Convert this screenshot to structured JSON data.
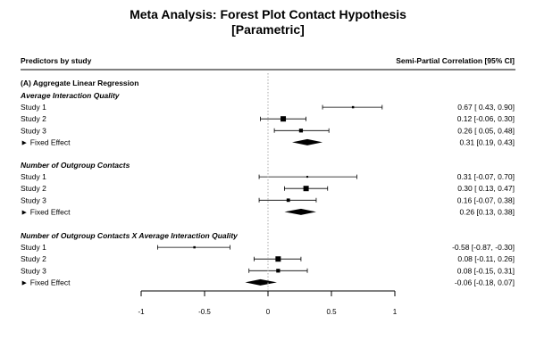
{
  "chart_data": {
    "type": "forest",
    "title": [
      "Meta Analysis: Forest Plot Contact Hypothesis",
      "[Parametric]"
    ],
    "left_header": "Predictors by study",
    "right_header": "Semi-Partial Correlation [95% CI]",
    "section_title": "(A) Aggregate Linear Regression",
    "xlim": [
      -1,
      1
    ],
    "ticks": [
      -1,
      -0.5,
      0,
      0.5,
      1
    ],
    "tick_labels": [
      "-1",
      "-0.5",
      "0",
      "0.5",
      "1"
    ],
    "reference_line": 0,
    "groups": [
      {
        "name": "Average Interaction Quality",
        "studies": [
          {
            "label": "Study 1",
            "est": 0.67,
            "lo": 0.43,
            "hi": 0.9,
            "weight": 0.2,
            "text": "0.67 [ 0.43,  0.90]"
          },
          {
            "label": "Study 2",
            "est": 0.12,
            "lo": -0.06,
            "hi": 0.3,
            "weight": 1.0,
            "text": "0.12 [-0.06,  0.30]"
          },
          {
            "label": "Study 3",
            "est": 0.26,
            "lo": 0.05,
            "hi": 0.48,
            "weight": 0.6,
            "text": "0.26 [ 0.05,  0.48]"
          }
        ],
        "fixed": {
          "label": "► Fixed Effect",
          "est": 0.31,
          "lo": 0.19,
          "hi": 0.43,
          "text": "0.31 [0.19, 0.43]"
        }
      },
      {
        "name": "Number of Outgroup Contacts",
        "studies": [
          {
            "label": "Study 1",
            "est": 0.31,
            "lo": -0.07,
            "hi": 0.7,
            "weight": 0.1,
            "text": "0.31 [-0.07,  0.70]"
          },
          {
            "label": "Study 2",
            "est": 0.3,
            "lo": 0.13,
            "hi": 0.47,
            "weight": 1.0,
            "text": "0.30 [ 0.13,  0.47]"
          },
          {
            "label": "Study 3",
            "est": 0.16,
            "lo": -0.07,
            "hi": 0.38,
            "weight": 0.5,
            "text": "0.16 [-0.07,  0.38]"
          }
        ],
        "fixed": {
          "label": "► Fixed Effect",
          "est": 0.26,
          "lo": 0.13,
          "hi": 0.38,
          "text": "0.26 [0.13, 0.38]"
        }
      },
      {
        "name": "Number of Outgroup Contacts X Average Interaction Quality",
        "studies": [
          {
            "label": "Study 1",
            "est": -0.58,
            "lo": -0.87,
            "hi": -0.3,
            "weight": 0.2,
            "text": "-0.58 [-0.87, -0.30]"
          },
          {
            "label": "Study 2",
            "est": 0.08,
            "lo": -0.11,
            "hi": 0.26,
            "weight": 1.0,
            "text": "0.08 [-0.11,  0.26]"
          },
          {
            "label": "Study 3",
            "est": 0.08,
            "lo": -0.15,
            "hi": 0.31,
            "weight": 0.6,
            "text": "0.08 [-0.15,  0.31]"
          }
        ],
        "fixed": {
          "label": "► Fixed Effect",
          "est": -0.06,
          "lo": -0.18,
          "hi": 0.07,
          "text": "-0.06 [-0.18, 0.07]"
        }
      }
    ]
  }
}
